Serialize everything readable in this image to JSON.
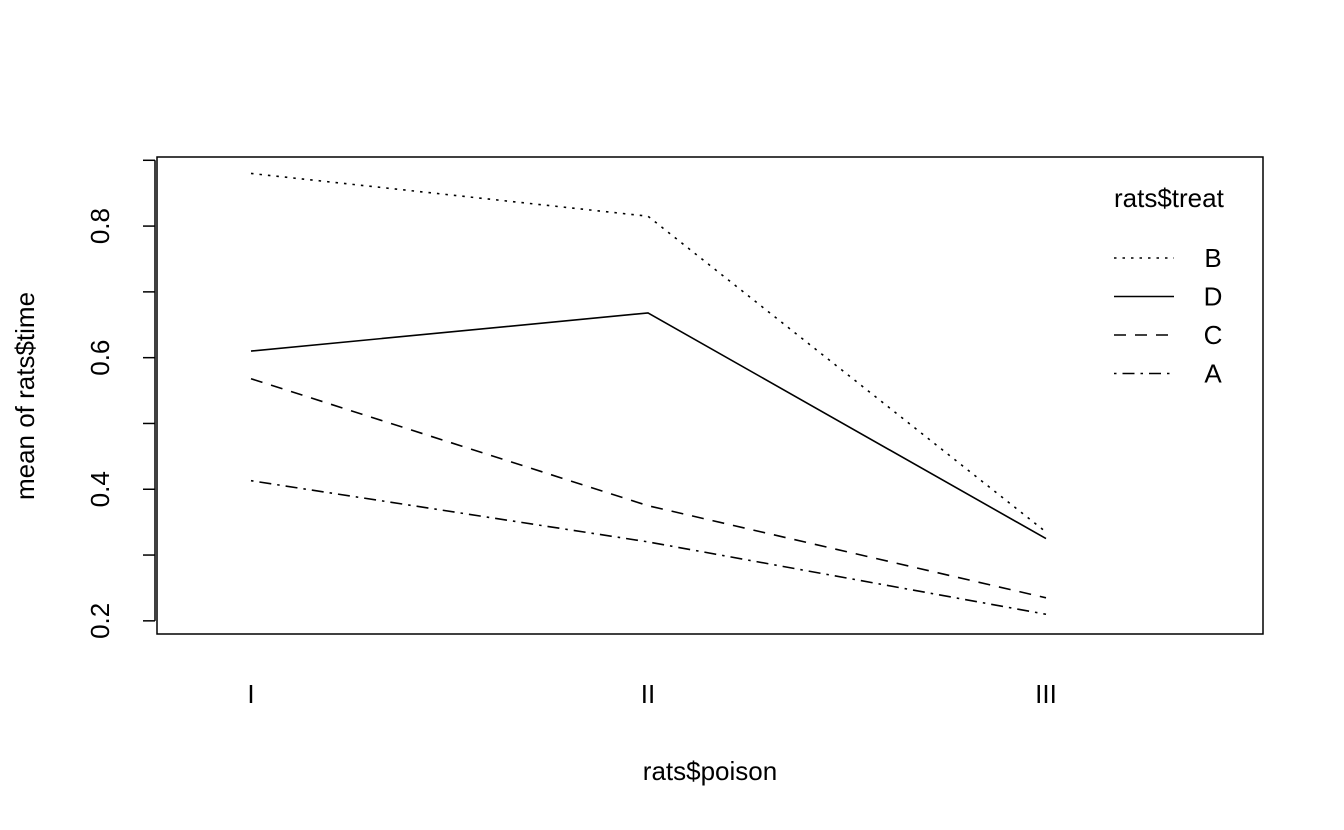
{
  "chart_data": {
    "type": "line",
    "title": "",
    "xlabel": "rats$poison",
    "ylabel": "mean of  rats$time",
    "categories": [
      "I",
      "II",
      "III"
    ],
    "ylim": [
      0.18,
      0.905
    ],
    "yticks": [
      0.2,
      0.3,
      0.4,
      0.5,
      0.6,
      0.7,
      0.8,
      0.9
    ],
    "ytick_labels": [
      "0.2",
      "",
      "0.4",
      "",
      "0.6",
      "",
      "0.8",
      ""
    ],
    "legend": {
      "title": "rats$treat",
      "position": "top-right"
    },
    "series": [
      {
        "name": "B",
        "values": [
          0.88,
          0.815,
          0.335
        ],
        "line_style": "dotted"
      },
      {
        "name": "D",
        "values": [
          0.61,
          0.668,
          0.325
        ],
        "line_style": "solid"
      },
      {
        "name": "C",
        "values": [
          0.568,
          0.375,
          0.235
        ],
        "line_style": "dashed"
      },
      {
        "name": "A",
        "values": [
          0.413,
          0.32,
          0.21
        ],
        "line_style": "dotdash"
      }
    ],
    "grid": false
  }
}
